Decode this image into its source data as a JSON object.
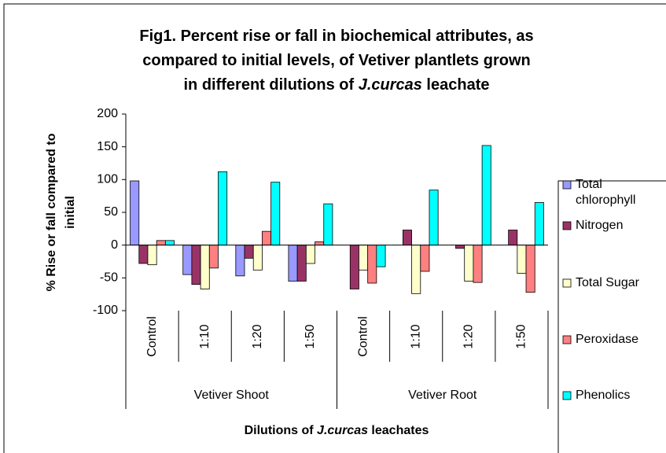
{
  "chart_data": {
    "type": "bar",
    "title_lines": [
      [
        "Fig1. Percent rise or fall in biochemical attributes, as"
      ],
      [
        "compared to initial levels, of Vetiver plantlets grown"
      ],
      [
        "in different dilutions of ",
        "J.curcas",
        " leachate"
      ]
    ],
    "ylabel_lines": [
      "% Rise or fall compared to",
      "initial"
    ],
    "xlabel": [
      "Dilutions of ",
      "J.curcas",
      " leachates"
    ],
    "groups": [
      "Vetiver Shoot",
      "Vetiver Root"
    ],
    "categories": [
      "Control",
      "1:10",
      "1:20",
      "1:50",
      "Control",
      "1:10",
      "1:20",
      "1:50"
    ],
    "series": [
      {
        "name": "Total chlorophyll",
        "color": "#9999ff",
        "values": [
          98,
          -45,
          -47,
          -55,
          0,
          0,
          0,
          0
        ]
      },
      {
        "name": "Nitrogen",
        "color": "#993366",
        "values": [
          -28,
          -60,
          -20,
          -55,
          -67,
          23,
          -5,
          23
        ]
      },
      {
        "name": "Total Sugar",
        "color": "#ffffcc",
        "values": [
          -30,
          -67,
          -38,
          -28,
          -38,
          -74,
          -55,
          -43
        ]
      },
      {
        "name": "Peroxidase",
        "color": "#ff8080",
        "values": [
          7,
          -35,
          21,
          5,
          -58,
          -40,
          -57,
          -72
        ]
      },
      {
        "name": "Phenolics",
        "color": "#00ffff",
        "values": [
          7,
          112,
          96,
          63,
          -33,
          84,
          152,
          65
        ]
      }
    ],
    "ylim": [
      -100,
      200
    ],
    "yticks": [
      -100,
      -50,
      0,
      50,
      100,
      150,
      200
    ],
    "grid": false,
    "legend": "right"
  }
}
